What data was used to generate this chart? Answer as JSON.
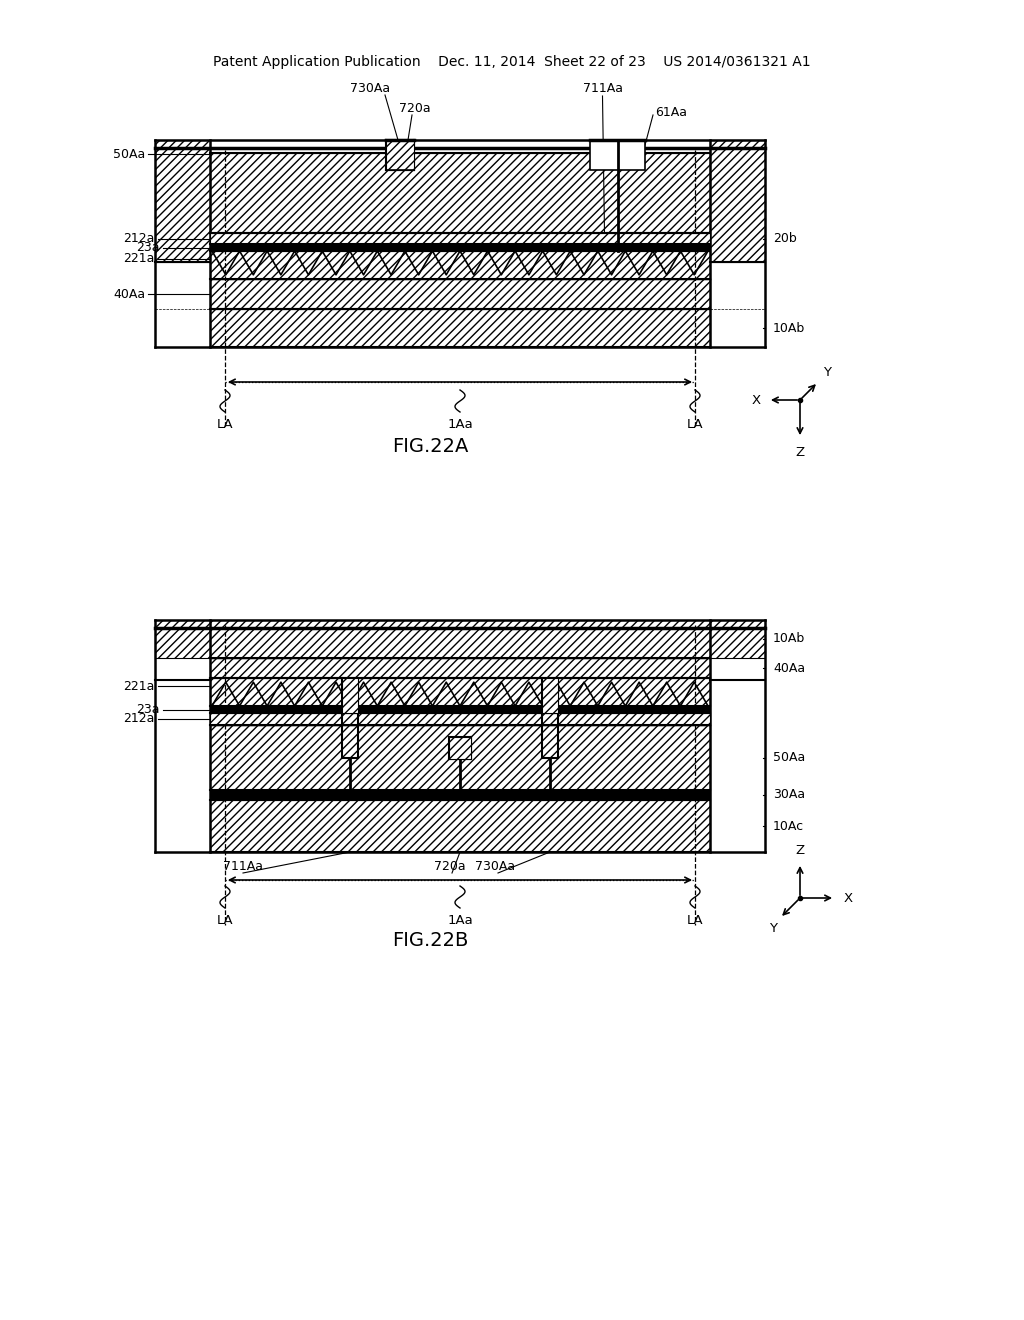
{
  "bg_color": "#ffffff",
  "line_color": "#000000",
  "header_text": "Patent Application Publication    Dec. 11, 2014  Sheet 22 of 23    US 2014/0361321 A1",
  "fig22a_caption": "FIG.22A",
  "fig22b_caption": "FIG.22B"
}
